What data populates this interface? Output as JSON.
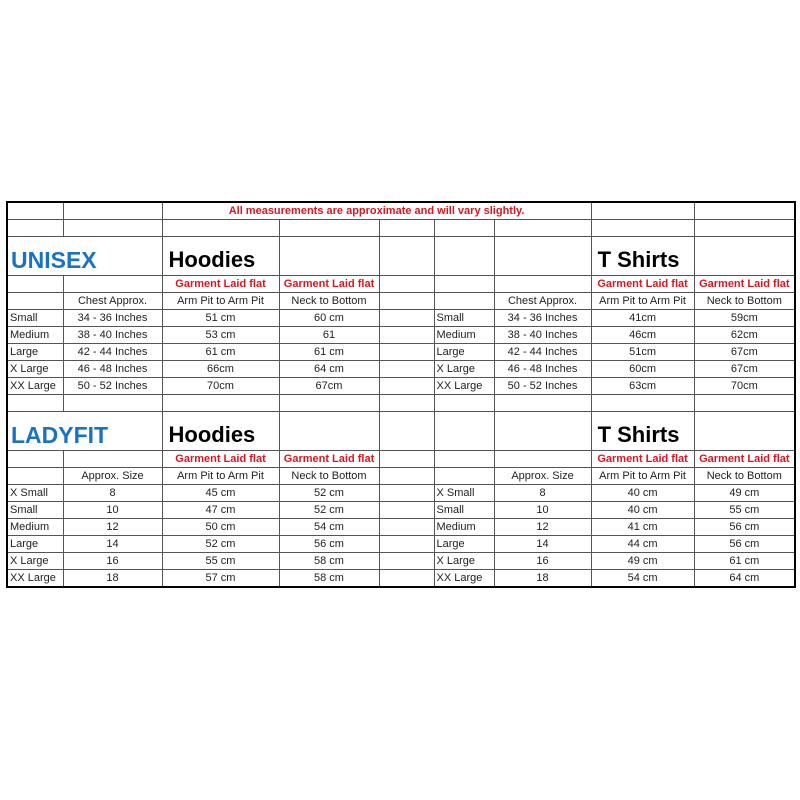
{
  "note": "All measurements are approximate and will vary slightly.",
  "sections": [
    {
      "brand": "UNISEX",
      "left": {
        "title": "Hoodies",
        "red": [
          "Garment Laid flat",
          "Garment Laid flat"
        ],
        "headers": [
          "Chest Approx.",
          "Arm Pit to Arm Pit",
          "Neck to Bottom"
        ],
        "rows": [
          [
            "Small",
            "34 - 36 Inches",
            "51 cm",
            "60 cm"
          ],
          [
            "Medium",
            "38 - 40 Inches",
            "53 cm",
            "61"
          ],
          [
            "Large",
            "42 - 44 Inches",
            "61 cm",
            "61 cm"
          ],
          [
            "X Large",
            "46 - 48 Inches",
            "66cm",
            "64 cm"
          ],
          [
            "XX Large",
            "50 - 52 Inches",
            "70cm",
            "67cm"
          ]
        ]
      },
      "right": {
        "title": "T Shirts",
        "red": [
          "Garment Laid flat",
          "Garment Laid flat"
        ],
        "headers": [
          "Chest Approx.",
          "Arm Pit to Arm Pit",
          "Neck to Bottom"
        ],
        "rows": [
          [
            "Small",
            "34 - 36 Inches",
            "41cm",
            "59cm"
          ],
          [
            "Medium",
            "38 - 40 Inches",
            "46cm",
            "62cm"
          ],
          [
            "Large",
            "42 - 44 Inches",
            "51cm",
            "67cm"
          ],
          [
            "X Large",
            "46 - 48 Inches",
            "60cm",
            "67cm"
          ],
          [
            "XX Large",
            "50 - 52 Inches",
            "63cm",
            "70cm"
          ]
        ]
      }
    },
    {
      "brand": "LADYFIT",
      "left": {
        "title": "Hoodies",
        "red": [
          "Garment Laid flat",
          "Garment Laid flat"
        ],
        "headers": [
          "Approx. Size",
          "Arm Pit to Arm Pit",
          "Neck to Bottom"
        ],
        "rows": [
          [
            "X Small",
            "8",
            "45 cm",
            "52 cm"
          ],
          [
            "Small",
            "10",
            "47 cm",
            "52 cm"
          ],
          [
            "Medium",
            "12",
            "50 cm",
            "54 cm"
          ],
          [
            "Large",
            "14",
            "52 cm",
            "56 cm"
          ],
          [
            "X Large",
            "16",
            "55 cm",
            "58 cm"
          ],
          [
            "XX Large",
            "18",
            "57 cm",
            "58 cm"
          ]
        ]
      },
      "right": {
        "title": "T Shirts",
        "red": [
          "Garment Laid flat",
          "Garment Laid flat"
        ],
        "headers": [
          "Approx. Size",
          "Arm Pit to Arm Pit",
          "Neck to Bottom"
        ],
        "rows": [
          [
            "X Small",
            "8",
            "40 cm",
            "49 cm"
          ],
          [
            "Small",
            "10",
            "40 cm",
            "55 cm"
          ],
          [
            "Medium",
            "12",
            "41 cm",
            "56 cm"
          ],
          [
            "Large",
            "14",
            "44 cm",
            "56 cm"
          ],
          [
            "X Large",
            "16",
            "49 cm",
            "61 cm"
          ],
          [
            "XX Large",
            "18",
            "54 cm",
            "64 cm"
          ]
        ]
      }
    }
  ]
}
